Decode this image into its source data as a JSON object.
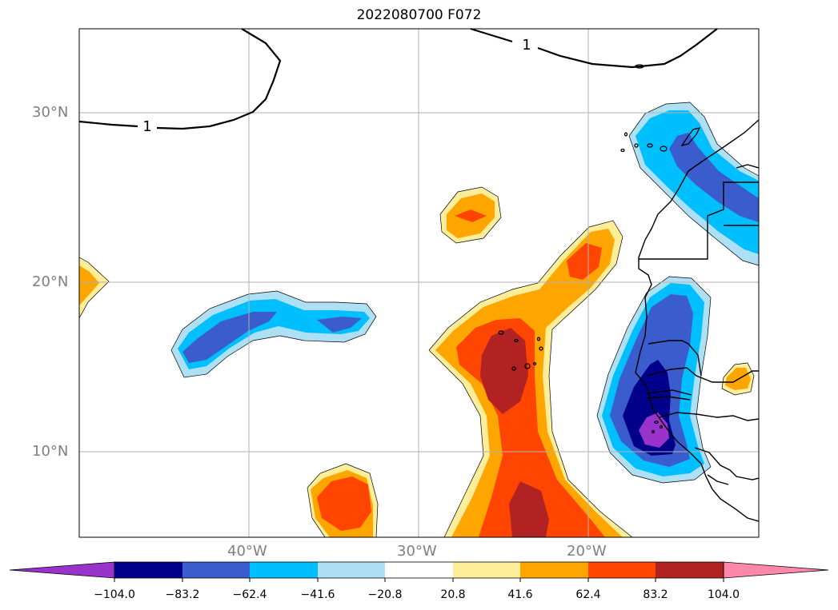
{
  "title": "2022080700 F072",
  "map": {
    "lat_labels": [
      "30°N",
      "20°N",
      "10°N"
    ],
    "lon_labels": [
      "40°W",
      "30°W",
      "20°W"
    ],
    "contour_labels": [
      "1",
      "1"
    ],
    "gridlines": true
  },
  "colorbar": {
    "extend": "both",
    "colors": [
      "#9933cc",
      "#00008b",
      "#3a5ccc",
      "#00bfff",
      "#aee0f5",
      "#ffffff",
      "#ffee99",
      "#ffa500",
      "#ff4500",
      "#b22222",
      "#ff88aa"
    ],
    "tick_labels": [
      "−104.0",
      "−83.2",
      "−62.4",
      "−41.6",
      "−20.8",
      "20.8",
      "41.6",
      "62.4",
      "83.2",
      "104.0"
    ]
  }
}
